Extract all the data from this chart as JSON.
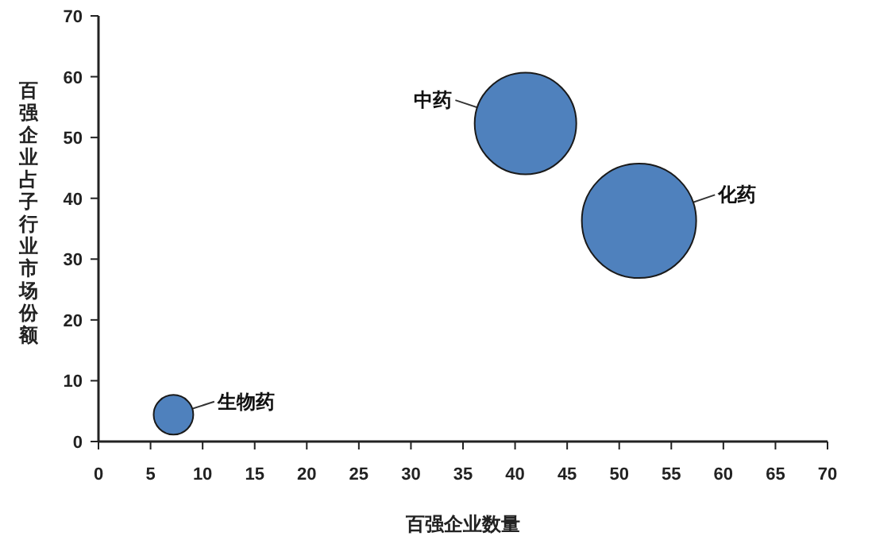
{
  "chart_data": {
    "type": "bubble",
    "xlabel": "百强企业数量",
    "ylabel": "百强企业占子行业市场份额",
    "x": [
      7.2,
      41,
      51.9
    ],
    "values": [
      4.4,
      52.3,
      36.3
    ],
    "sizes": [
      0.12,
      0.79,
      1
    ],
    "color": "#4f81bd",
    "xlim": [
      0,
      70
    ],
    "xticks": [
      0,
      5,
      10,
      15,
      20,
      25,
      30,
      35,
      40,
      45,
      50,
      55,
      60,
      65,
      70
    ],
    "ylim": [
      0,
      70
    ],
    "yticks": [
      0,
      10,
      20,
      30,
      40,
      50,
      60,
      70
    ],
    "grid": false,
    "annotations": [
      {
        "text": "生物药",
        "x": 7.2,
        "y": 4.4
      },
      {
        "text": "中药",
        "x": 41,
        "y": 52.3
      },
      {
        "text": "化药",
        "x": 51.9,
        "y": 36.3
      }
    ]
  }
}
